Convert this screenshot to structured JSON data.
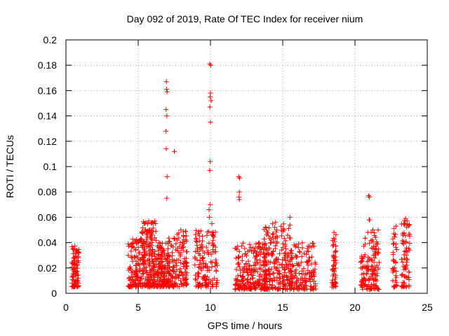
{
  "chart_data": {
    "type": "scatter",
    "title": "Day 092 of 2019, Rate Of TEC Index for receiver nium",
    "xlabel": "GPS time / hours",
    "ylabel": "ROTI / TECUs",
    "xlim": [
      0,
      25
    ],
    "ylim": [
      0,
      0.2
    ],
    "xticks": [
      "0",
      "5",
      "10",
      "15",
      "20",
      "25"
    ],
    "yticks": [
      "0",
      "0.02",
      "0.04",
      "0.06",
      "0.08",
      "0.1",
      "0.12",
      "0.14",
      "0.16",
      "0.18",
      "0.2"
    ],
    "grid": true,
    "marker": "+",
    "color": "#ff0000",
    "clusters": [
      {
        "x_range": [
          0.4,
          0.9
        ],
        "y_range": [
          0.005,
          0.038
        ],
        "count": 90
      },
      {
        "x_range": [
          4.3,
          5.2
        ],
        "y_range": [
          0.005,
          0.043
        ],
        "count": 110
      },
      {
        "x_range": [
          5.2,
          6.3
        ],
        "y_range": [
          0.005,
          0.058
        ],
        "count": 190
      },
      {
        "x_range": [
          6.3,
          7.1
        ],
        "y_range": [
          0.005,
          0.04
        ],
        "count": 140
      },
      {
        "x_range": [
          7.1,
          8.4
        ],
        "y_range": [
          0.005,
          0.05
        ],
        "count": 140
      },
      {
        "x_range": [
          8.9,
          10.5
        ],
        "y_range": [
          0.005,
          0.05
        ],
        "count": 150
      },
      {
        "x_range": [
          11.7,
          13.9
        ],
        "y_range": [
          0.003,
          0.04
        ],
        "count": 230
      },
      {
        "x_range": [
          13.7,
          15.6
        ],
        "y_range": [
          0.003,
          0.055
        ],
        "count": 220
      },
      {
        "x_range": [
          15.5,
          17.3
        ],
        "y_range": [
          0.003,
          0.04
        ],
        "count": 150
      },
      {
        "x_range": [
          18.4,
          18.7
        ],
        "y_range": [
          0.005,
          0.047
        ],
        "count": 50
      },
      {
        "x_range": [
          20.4,
          21.7
        ],
        "y_range": [
          0.003,
          0.05
        ],
        "count": 140
      },
      {
        "x_range": [
          22.6,
          22.9
        ],
        "y_range": [
          0.005,
          0.052
        ],
        "count": 40
      },
      {
        "x_range": [
          23.2,
          23.8
        ],
        "y_range": [
          0.005,
          0.058
        ],
        "count": 70
      }
    ],
    "points": [
      [
        6.95,
        0.167
      ],
      [
        6.97,
        0.161
      ],
      [
        7.0,
        0.159
      ],
      [
        6.93,
        0.145
      ],
      [
        6.98,
        0.14
      ],
      [
        6.92,
        0.128
      ],
      [
        6.94,
        0.114
      ],
      [
        7.5,
        0.112
      ],
      [
        7.0,
        0.092
      ],
      [
        6.98,
        0.075
      ],
      [
        9.95,
        0.181
      ],
      [
        10.02,
        0.18
      ],
      [
        10.0,
        0.158
      ],
      [
        9.98,
        0.155
      ],
      [
        10.05,
        0.152
      ],
      [
        9.96,
        0.147
      ],
      [
        10.0,
        0.135
      ],
      [
        9.98,
        0.104
      ],
      [
        9.95,
        0.097
      ],
      [
        9.97,
        0.07
      ],
      [
        9.9,
        0.066
      ],
      [
        9.92,
        0.06
      ],
      [
        10.1,
        0.055
      ],
      [
        11.95,
        0.092
      ],
      [
        12.02,
        0.091
      ],
      [
        12.0,
        0.08
      ],
      [
        11.98,
        0.076
      ],
      [
        12.0,
        0.074
      ],
      [
        20.95,
        0.077
      ],
      [
        21.0,
        0.076
      ],
      [
        20.98,
        0.058
      ],
      [
        21.02,
        0.058
      ],
      [
        15.1,
        0.05
      ],
      [
        15.5,
        0.06
      ],
      [
        14.5,
        0.056
      ],
      [
        14.45,
        0.052
      ],
      [
        21.6,
        0.05
      ],
      [
        23.5,
        0.059
      ],
      [
        23.48,
        0.055
      ],
      [
        22.85,
        0.053
      ],
      [
        23.3,
        0.047
      ],
      [
        18.55,
        0.048
      ],
      [
        7.95,
        0.05
      ],
      [
        7.7,
        0.042
      ],
      [
        6.15,
        0.057
      ],
      [
        6.2,
        0.055
      ],
      [
        5.95,
        0.056
      ]
    ]
  }
}
